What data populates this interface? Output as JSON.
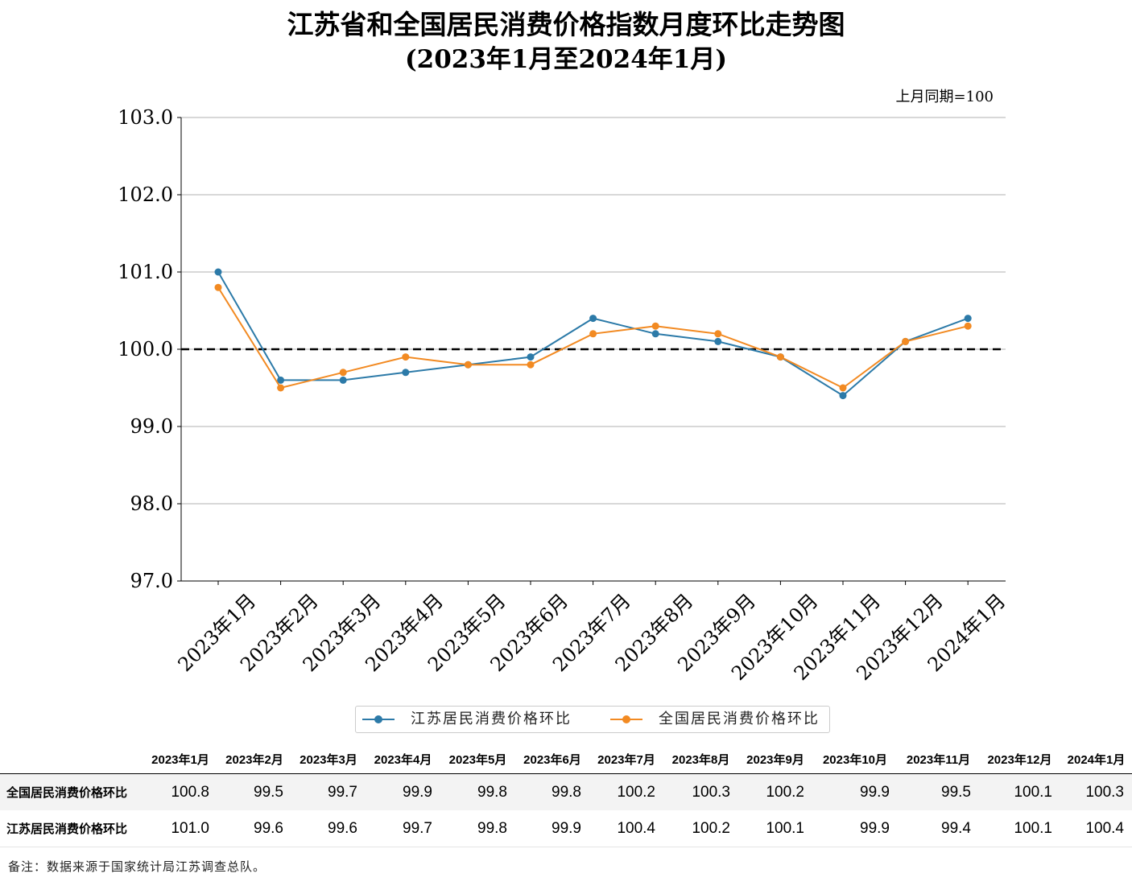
{
  "title_line1": "江苏省和全国居民消费价格指数月度环比走势图",
  "title_line2": "(2023年1月至2024年1月)",
  "unit_note": "上月同期=100",
  "legend": [
    {
      "label": "江苏居民消费价格环比",
      "color": "#2c7aa8"
    },
    {
      "label": "全国居民消费价格环比",
      "color": "#f28a22"
    }
  ],
  "chart_data": {
    "type": "line",
    "title": "江苏省和全国居民消费价格指数月度环比走势图",
    "subtitle": "(2023年1月至2024年1月)",
    "categories": [
      "2023年1月",
      "2023年2月",
      "2023年3月",
      "2023年4月",
      "2023年5月",
      "2023年6月",
      "2023年7月",
      "2023年8月",
      "2023年9月",
      "2023年10月",
      "2023年11月",
      "2023年12月",
      "2024年1月"
    ],
    "series": [
      {
        "name": "江苏居民消费价格环比",
        "color": "#2c7aa8",
        "values": [
          101.0,
          99.6,
          99.6,
          99.7,
          99.8,
          99.9,
          100.4,
          100.2,
          100.1,
          99.9,
          99.4,
          100.1,
          100.4
        ]
      },
      {
        "name": "全国居民消费价格环比",
        "color": "#f28a22",
        "values": [
          100.8,
          99.5,
          99.7,
          99.9,
          99.8,
          99.8,
          100.2,
          100.3,
          100.2,
          99.9,
          99.5,
          100.1,
          100.3
        ]
      }
    ],
    "ylim": [
      97.0,
      103.0
    ],
    "yticks": [
      "97.0",
      "98.0",
      "99.0",
      "100.0",
      "101.0",
      "102.0",
      "103.0"
    ],
    "reference_line": 100.0,
    "grid": "horizontal",
    "legend_position": "bottom-center"
  },
  "table": {
    "headers": [
      "2023年1月",
      "2023年2月",
      "2023年3月",
      "2023年4月",
      "2023年5月",
      "2023年6月",
      "2023年7月",
      "2023年8月",
      "2023年9月",
      "2023年10月",
      "2023年11月",
      "2023年12月",
      "2024年1月"
    ],
    "rows": [
      {
        "label": "全国居民消费价格环比",
        "values": [
          "100.8",
          "99.5",
          "99.7",
          "99.9",
          "99.8",
          "99.8",
          "100.2",
          "100.3",
          "100.2",
          "99.9",
          "99.5",
          "100.1",
          "100.3"
        ]
      },
      {
        "label": "江苏居民消费价格环比",
        "values": [
          "101.0",
          "99.6",
          "99.6",
          "99.7",
          "99.8",
          "99.9",
          "100.4",
          "100.2",
          "100.1",
          "99.9",
          "99.4",
          "100.1",
          "100.4"
        ]
      }
    ]
  },
  "footnote": "备注：数据来源于国家统计局江苏调查总队。"
}
